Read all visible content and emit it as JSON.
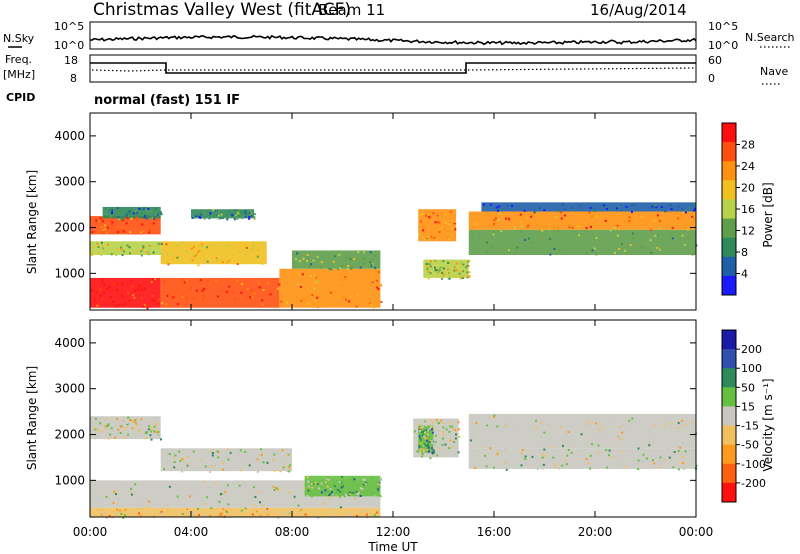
{
  "header": {
    "title": "Christmas Valley West (fitACF)",
    "beam": "Beam 11",
    "date": "16/Aug/2014"
  },
  "params": {
    "nsky_label": "N.Sky",
    "nsearch_label": "N.Search",
    "nsky_ticks": [
      "10^5",
      "10^0"
    ],
    "nsearch_ticks": [
      "10^5",
      "10^0"
    ],
    "freq_label": "Freq.",
    "freq_unit": "[MHz]",
    "freq_ticks": [
      "18",
      "8"
    ],
    "nave_label": "Nave",
    "nave_ticks": [
      "60",
      "0"
    ],
    "cpid_label": "CPID",
    "cpid_value": "normal (fast) 151 IF"
  },
  "chart_data": [
    {
      "type": "heatmap",
      "panel": "power",
      "ylabel": "Slant Range [km]",
      "yticks": [
        "1000",
        "2000",
        "3000",
        "4000"
      ],
      "ylim": [
        200,
        4500
      ],
      "xlim_hours": [
        0,
        24
      ],
      "colorbar_label": "Power [dB]",
      "colorbar_ticks": [
        "4",
        "8",
        "12",
        "16",
        "20",
        "24",
        "28"
      ],
      "colors": [
        "#1a1aff",
        "#1f5fa8",
        "#2d8a5a",
        "#5f9f4a",
        "#b8d24a",
        "#f0c020",
        "#ff9010",
        "#ff5010",
        "#ff1010"
      ],
      "bands": [
        {
          "t0": 0.0,
          "t1": 2.8,
          "r0": 250,
          "r1": 900,
          "level": 8
        },
        {
          "t0": 0.0,
          "t1": 2.8,
          "r0": 1400,
          "r1": 1700,
          "level": 4
        },
        {
          "t0": 0.0,
          "t1": 2.8,
          "r0": 1850,
          "r1": 2250,
          "level": 7
        },
        {
          "t0": 0.5,
          "t1": 2.8,
          "r0": 2200,
          "r1": 2450,
          "level": 2
        },
        {
          "t0": 2.8,
          "t1": 7.5,
          "r0": 250,
          "r1": 900,
          "level": 7
        },
        {
          "t0": 2.8,
          "t1": 7.0,
          "r0": 1200,
          "r1": 1700,
          "level": 5
        },
        {
          "t0": 4.0,
          "t1": 6.5,
          "r0": 2200,
          "r1": 2400,
          "level": 2
        },
        {
          "t0": 7.5,
          "t1": 11.5,
          "r0": 250,
          "r1": 1100,
          "level": 6
        },
        {
          "t0": 8.0,
          "t1": 11.5,
          "r0": 1100,
          "r1": 1500,
          "level": 3
        },
        {
          "t0": 13.0,
          "t1": 14.5,
          "r0": 1700,
          "r1": 2400,
          "level": 6
        },
        {
          "t0": 13.2,
          "t1": 15.0,
          "r0": 900,
          "r1": 1300,
          "level": 4
        },
        {
          "t0": 15.0,
          "t1": 24.0,
          "r0": 1950,
          "r1": 2350,
          "level": 6
        },
        {
          "t0": 15.0,
          "t1": 24.0,
          "r0": 1400,
          "r1": 1950,
          "level": 3
        },
        {
          "t0": 15.5,
          "t1": 24.0,
          "r0": 2350,
          "r1": 2550,
          "level": 1
        }
      ]
    },
    {
      "type": "heatmap",
      "panel": "velocity",
      "ylabel": "Slant Range [km]",
      "yticks": [
        "1000",
        "2000",
        "3000",
        "4000"
      ],
      "ylim": [
        200,
        4500
      ],
      "xlim_hours": [
        0,
        24
      ],
      "colorbar_label": "Velocity [m s⁻¹]",
      "colorbar_ticks": [
        "200",
        "100",
        "50",
        "15",
        "-15",
        "-50",
        "-100",
        "-200"
      ],
      "colors": [
        "#1a1aa8",
        "#3050b0",
        "#2d8a5a",
        "#66c040",
        "#c8c8c0",
        "#f0c060",
        "#ff9a20",
        "#ff6010",
        "#ff1010"
      ],
      "bands": [
        {
          "t0": 0.0,
          "t1": 11.5,
          "r0": 400,
          "r1": 1000,
          "level": 4
        },
        {
          "t0": 0.0,
          "t1": 2.8,
          "r0": 1900,
          "r1": 2400,
          "level": 4
        },
        {
          "t0": 2.8,
          "t1": 8.0,
          "r0": 1200,
          "r1": 1700,
          "level": 4
        },
        {
          "t0": 0.0,
          "t1": 11.5,
          "r0": 200,
          "r1": 400,
          "level": 5
        },
        {
          "t0": 8.5,
          "t1": 11.5,
          "r0": 650,
          "r1": 1100,
          "level": 3
        },
        {
          "t0": 12.8,
          "t1": 14.6,
          "r0": 1500,
          "r1": 2350,
          "level": 4
        },
        {
          "t0": 13.0,
          "t1": 13.6,
          "r0": 1600,
          "r1": 2200,
          "level": 3
        },
        {
          "t0": 15.0,
          "t1": 24.0,
          "r0": 1700,
          "r1": 2450,
          "level": 4
        },
        {
          "t0": 15.0,
          "t1": 24.0,
          "r0": 1250,
          "r1": 1700,
          "level": 4
        }
      ]
    }
  ],
  "x_axis": {
    "label": "Time UT",
    "ticks": [
      "00:00",
      "04:00",
      "08:00",
      "12:00",
      "16:00",
      "20:00",
      "00:00"
    ]
  }
}
